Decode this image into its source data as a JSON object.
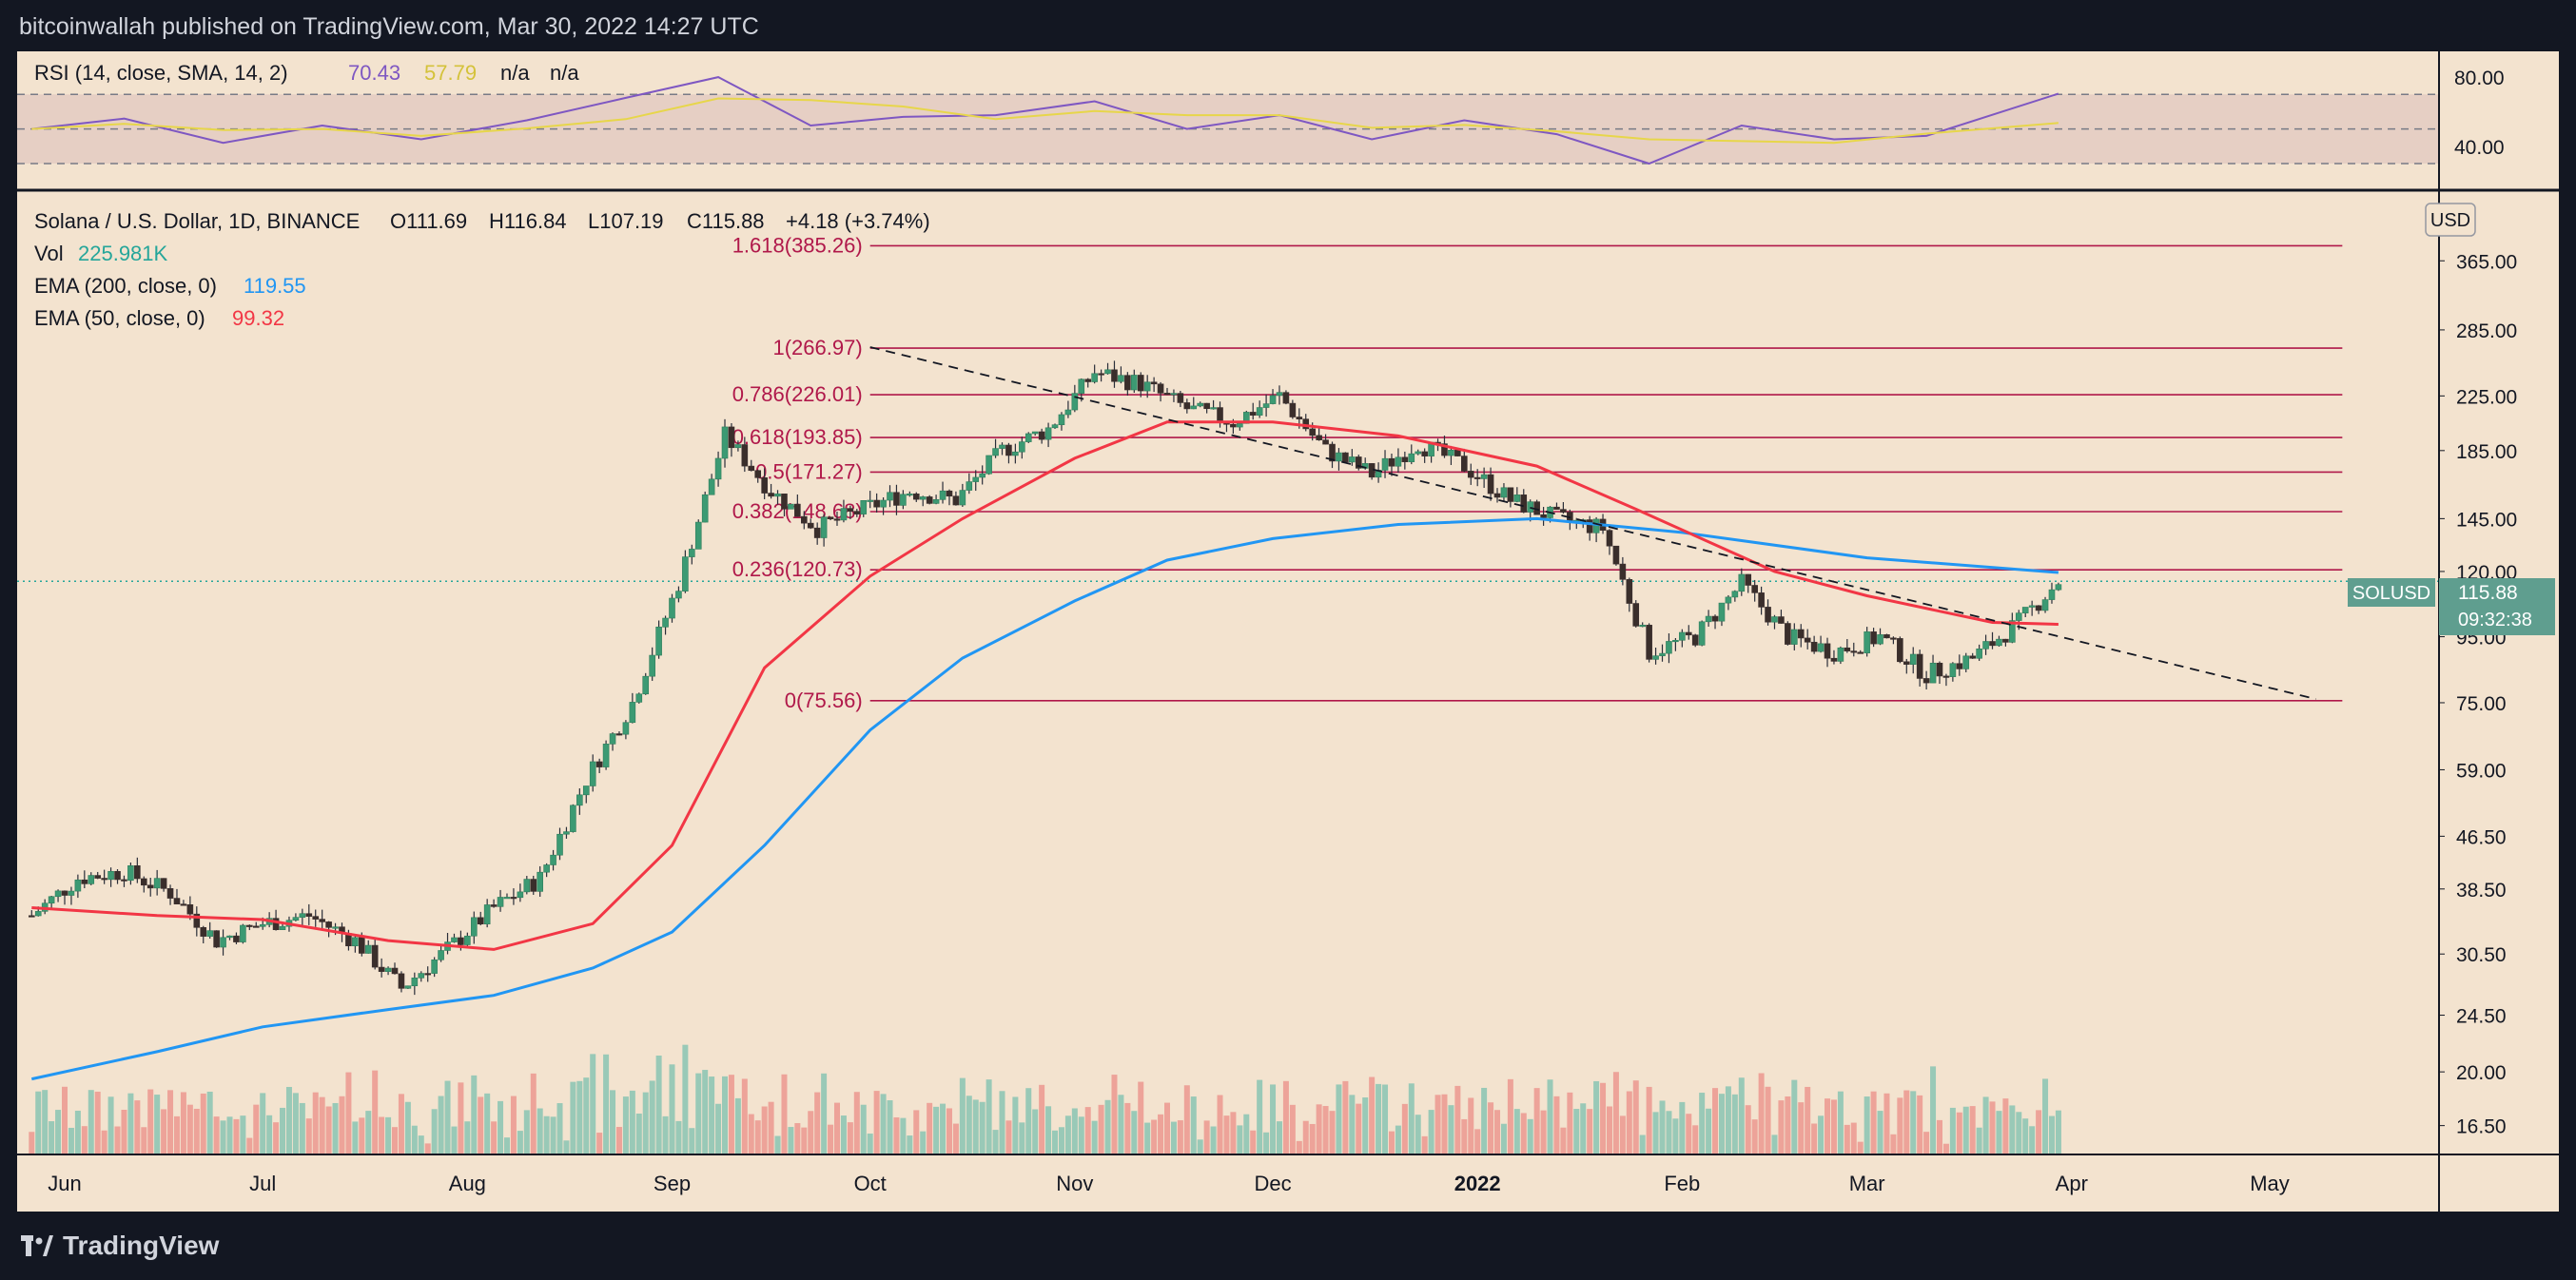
{
  "header": {
    "publisher": "bitcoinwallah published on TradingView.com, Mar 30, 2022 14:27 UTC"
  },
  "footer": {
    "brand": "TradingView"
  },
  "rsi_panel": {
    "legend_name": "RSI (14, close, SMA, 14, 2)",
    "value": "70.43",
    "sma_value": "57.79",
    "na1": "n/a",
    "na2": "n/a",
    "ticks": [
      "80.00",
      "40.00"
    ],
    "line_color": "#7e57c2",
    "sma_color": "#e7d64a"
  },
  "price_panel": {
    "symbol_line": "Solana / U.S. Dollar, 1D, BINANCE",
    "ohlc": {
      "o": "O111.69",
      "h": "H116.84",
      "l": "L107.19",
      "c": "C115.88",
      "chg": "+4.18 (+3.74%)"
    },
    "vol_label": "Vol",
    "vol_value": "225.981K",
    "ema200_label": "EMA (200, close, 0)",
    "ema200_value": "119.55",
    "ema200_color": "#2196f3",
    "ema50_label": "EMA (50, close, 0)",
    "ema50_value": "99.32",
    "ema50_color": "#f23645",
    "currency": "USD",
    "last_symbol": "SOLUSD",
    "last_price": "115.88",
    "countdown": "09:32:38",
    "up_color": "#26a69a",
    "down_color": "#ef5350"
  },
  "chart_data": {
    "type": "candlestick",
    "title": "Solana / U.S. Dollar, 1D, BINANCE",
    "y_scale": "log",
    "ylim": [
      15.5,
      470
    ],
    "yticks": [
      "16.50",
      "20.00",
      "24.50",
      "30.50",
      "38.50",
      "46.50",
      "59.00",
      "75.00",
      "95.00",
      "120.00",
      "145.00",
      "185.00",
      "225.00",
      "285.00",
      "365.00"
    ],
    "xticks": [
      "Jun",
      "Jul",
      "Aug",
      "Sep",
      "Oct",
      "Nov",
      "Dec",
      "2022",
      "Feb",
      "Mar",
      "Apr",
      "May"
    ],
    "x_dates": [
      "2021-06-01",
      "2021-07-01",
      "2021-08-01",
      "2021-09-01",
      "2021-10-01",
      "2021-11-01",
      "2021-12-01",
      "2022-01-01",
      "2022-02-01",
      "2022-03-01",
      "2022-04-01",
      "2022-05-01"
    ],
    "fib_levels": [
      {
        "label": "1.618(385.26)",
        "price": 385.26
      },
      {
        "label": "1(266.97)",
        "price": 266.97
      },
      {
        "label": "0.786(226.01)",
        "price": 226.01
      },
      {
        "label": "0.618(193.85)",
        "price": 193.85
      },
      {
        "label": "0.5(171.27)",
        "price": 171.27
      },
      {
        "label": "0.382(148.68)",
        "price": 148.68
      },
      {
        "label": "0.236(120.73)",
        "price": 120.73
      },
      {
        "label": "0(75.56)",
        "price": 75.56
      }
    ],
    "trendline": {
      "from": {
        "date": "2021-10-01",
        "price": 268
      },
      "to": {
        "date": "2022-05-08",
        "price": 76
      }
    },
    "series": [
      {
        "name": "SOLUSD close",
        "points": [
          [
            "2021-05-27",
            35
          ],
          [
            "2021-06-03",
            40
          ],
          [
            "2021-06-10",
            41
          ],
          [
            "2021-06-17",
            38
          ],
          [
            "2021-06-24",
            32
          ],
          [
            "2021-07-01",
            34
          ],
          [
            "2021-07-08",
            35
          ],
          [
            "2021-07-15",
            32
          ],
          [
            "2021-07-22",
            27
          ],
          [
            "2021-07-29",
            31
          ],
          [
            "2021-08-05",
            36
          ],
          [
            "2021-08-12",
            40
          ],
          [
            "2021-08-19",
            57
          ],
          [
            "2021-08-26",
            75
          ],
          [
            "2021-09-02",
            115
          ],
          [
            "2021-09-09",
            195
          ],
          [
            "2021-09-16",
            160
          ],
          [
            "2021-09-23",
            140
          ],
          [
            "2021-09-30",
            150
          ],
          [
            "2021-10-07",
            160
          ],
          [
            "2021-10-14",
            155
          ],
          [
            "2021-10-21",
            185
          ],
          [
            "2021-10-28",
            200
          ],
          [
            "2021-11-04",
            245
          ],
          [
            "2021-11-11",
            235
          ],
          [
            "2021-11-18",
            215
          ],
          [
            "2021-11-25",
            205
          ],
          [
            "2021-12-02",
            225
          ],
          [
            "2021-12-09",
            185
          ],
          [
            "2021-12-16",
            170
          ],
          [
            "2021-12-23",
            190
          ],
          [
            "2021-12-30",
            175
          ],
          [
            "2022-01-06",
            155
          ],
          [
            "2022-01-13",
            145
          ],
          [
            "2022-01-20",
            140
          ],
          [
            "2022-01-27",
            90
          ],
          [
            "2022-02-03",
            95
          ],
          [
            "2022-02-10",
            115
          ],
          [
            "2022-02-17",
            95
          ],
          [
            "2022-02-24",
            90
          ],
          [
            "2022-03-03",
            95
          ],
          [
            "2022-03-10",
            83
          ],
          [
            "2022-03-17",
            88
          ],
          [
            "2022-03-24",
            100
          ],
          [
            "2022-03-30",
            115.88
          ]
        ]
      },
      {
        "name": "EMA (200, close, 0)",
        "points": [
          [
            "2021-05-27",
            19.5
          ],
          [
            "2021-06-15",
            21.5
          ],
          [
            "2021-07-01",
            23.5
          ],
          [
            "2021-07-20",
            25
          ],
          [
            "2021-08-05",
            26.3
          ],
          [
            "2021-08-20",
            29
          ],
          [
            "2021-09-01",
            33
          ],
          [
            "2021-09-15",
            45
          ],
          [
            "2021-10-01",
            68
          ],
          [
            "2021-10-15",
            88
          ],
          [
            "2021-11-01",
            108
          ],
          [
            "2021-11-15",
            125
          ],
          [
            "2021-12-01",
            135
          ],
          [
            "2021-12-20",
            142
          ],
          [
            "2022-01-10",
            145
          ],
          [
            "2022-02-01",
            138
          ],
          [
            "2022-03-01",
            126
          ],
          [
            "2022-03-30",
            119.55
          ]
        ]
      },
      {
        "name": "EMA (50, close, 0)",
        "points": [
          [
            "2021-05-27",
            36
          ],
          [
            "2021-06-15",
            35
          ],
          [
            "2021-07-01",
            34.5
          ],
          [
            "2021-07-20",
            32
          ],
          [
            "2021-08-05",
            31
          ],
          [
            "2021-08-20",
            34
          ],
          [
            "2021-09-01",
            45
          ],
          [
            "2021-09-15",
            85
          ],
          [
            "2021-10-01",
            118
          ],
          [
            "2021-10-15",
            145
          ],
          [
            "2021-11-01",
            180
          ],
          [
            "2021-11-15",
            205
          ],
          [
            "2021-12-01",
            205
          ],
          [
            "2021-12-20",
            195
          ],
          [
            "2022-01-10",
            175
          ],
          [
            "2022-01-25",
            150
          ],
          [
            "2022-02-15",
            120
          ],
          [
            "2022-03-01",
            110
          ],
          [
            "2022-03-20",
            100
          ],
          [
            "2022-03-30",
            99.32
          ]
        ]
      }
    ],
    "rsi_points": [
      [
        "2021-05-27",
        50
      ],
      [
        "2021-06-10",
        56
      ],
      [
        "2021-06-25",
        42
      ],
      [
        "2021-07-10",
        52
      ],
      [
        "2021-07-25",
        44
      ],
      [
        "2021-08-10",
        55
      ],
      [
        "2021-08-25",
        68
      ],
      [
        "2021-09-08",
        80
      ],
      [
        "2021-09-22",
        52
      ],
      [
        "2021-10-06",
        57
      ],
      [
        "2021-10-20",
        58
      ],
      [
        "2021-11-04",
        66
      ],
      [
        "2021-11-18",
        50
      ],
      [
        "2021-12-02",
        58
      ],
      [
        "2021-12-16",
        44
      ],
      [
        "2021-12-30",
        55
      ],
      [
        "2022-01-13",
        47
      ],
      [
        "2022-01-27",
        30
      ],
      [
        "2022-02-10",
        52
      ],
      [
        "2022-02-24",
        44
      ],
      [
        "2022-03-10",
        46
      ],
      [
        "2022-03-30",
        70.43
      ]
    ],
    "volume": {
      "max_units": 1
    },
    "legend_position": "top-left"
  }
}
